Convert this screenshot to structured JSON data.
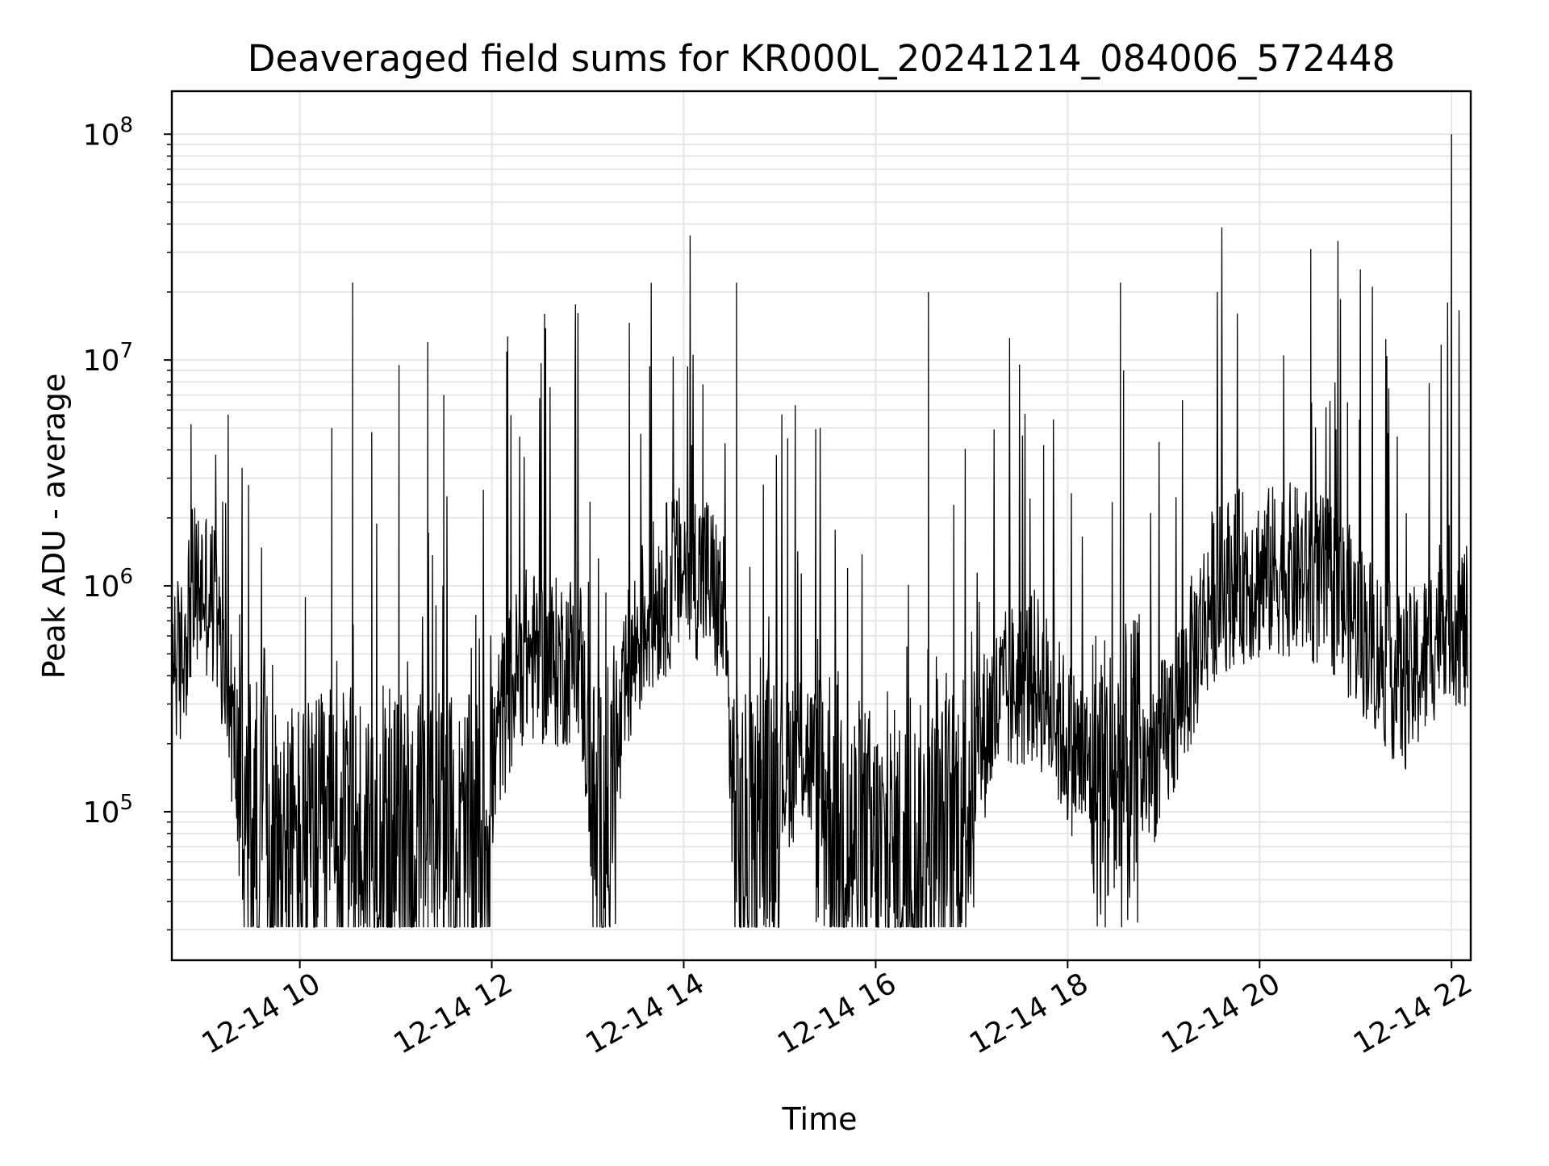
{
  "chart_data": {
    "type": "line",
    "title": "Deaveraged field sums for KR000L_20241214_084006_572448",
    "xlabel": "Time",
    "ylabel": "Peak ADU - average",
    "x_start": "2024-12-14 08:40",
    "x_end": "2024-12-14 22:10",
    "xlim": [
      "2024-12-14 08:40",
      "2024-12-14 22:12"
    ],
    "ylim": [
      22000,
      155000000
    ],
    "y_scale": "log",
    "grid": true,
    "legend": "none",
    "x_ticks": [
      "12-14 10",
      "12-14 12",
      "12-14 14",
      "12-14 16",
      "12-14 18",
      "12-14 20",
      "12-14 22"
    ],
    "y_ticks": [
      {
        "base": "10",
        "exp": "5",
        "value": 100000
      },
      {
        "base": "10",
        "exp": "6",
        "value": 1000000
      },
      {
        "base": "10",
        "exp": "7",
        "value": 10000000
      },
      {
        "base": "10",
        "exp": "8",
        "value": 100000000
      }
    ],
    "series": [
      {
        "line_color": "#000000",
        "points": [
          [
            "2024-12-14 08:40",
            600000
          ],
          [
            "2024-12-14 08:45",
            420000
          ],
          [
            "2024-12-14 08:52",
            900000
          ],
          [
            "2024-12-14 09:00",
            1000000
          ],
          [
            "2024-12-14 09:07",
            800000
          ],
          [
            "2024-12-14 09:12",
            400000
          ],
          [
            "2024-12-14 09:18",
            250000
          ],
          [
            "2024-12-14 09:25",
            90000
          ],
          [
            "2024-12-14 09:35",
            80000
          ],
          [
            "2024-12-14 09:45",
            70000
          ],
          [
            "2024-12-14 10:00",
            65000
          ],
          [
            "2024-12-14 10:20",
            70000
          ],
          [
            "2024-12-14 10:40",
            75000
          ],
          [
            "2024-12-14 11:00",
            70000
          ],
          [
            "2024-12-14 11:20",
            75000
          ],
          [
            "2024-12-14 11:40",
            65000
          ],
          [
            "2024-12-14 11:55",
            70000
          ],
          [
            "2024-12-14 12:05",
            250000
          ],
          [
            "2024-12-14 12:20",
            500000
          ],
          [
            "2024-12-14 12:40",
            450000
          ],
          [
            "2024-12-14 12:55",
            500000
          ],
          [
            "2024-12-14 13:05",
            70000
          ],
          [
            "2024-12-14 13:15",
            100000
          ],
          [
            "2024-12-14 13:25",
            400000
          ],
          [
            "2024-12-14 13:35",
            700000
          ],
          [
            "2024-12-14 13:45",
            900000
          ],
          [
            "2024-12-14 14:00",
            1200000
          ],
          [
            "2024-12-14 14:15",
            1100000
          ],
          [
            "2024-12-14 14:25",
            700000
          ],
          [
            "2024-12-14 14:32",
            80000
          ],
          [
            "2024-12-14 14:45",
            60000
          ],
          [
            "2024-12-14 15:00",
            150000
          ],
          [
            "2024-12-14 15:15",
            200000
          ],
          [
            "2024-12-14 15:30",
            110000
          ],
          [
            "2024-12-14 15:45",
            70000
          ],
          [
            "2024-12-14 16:00",
            60000
          ],
          [
            "2024-12-14 16:20",
            60000
          ],
          [
            "2024-12-14 16:40",
            65000
          ],
          [
            "2024-12-14 16:55",
            100000
          ],
          [
            "2024-12-14 17:10",
            250000
          ],
          [
            "2024-12-14 17:25",
            350000
          ],
          [
            "2024-12-14 17:40",
            400000
          ],
          [
            "2024-12-14 18:00",
            200000
          ],
          [
            "2024-12-14 18:15",
            150000
          ],
          [
            "2024-12-14 18:30",
            130000
          ],
          [
            "2024-12-14 18:45",
            150000
          ],
          [
            "2024-12-14 19:00",
            200000
          ],
          [
            "2024-12-14 19:15",
            400000
          ],
          [
            "2024-12-14 19:30",
            900000
          ],
          [
            "2024-12-14 19:45",
            1100000
          ],
          [
            "2024-12-14 20:00",
            1100000
          ],
          [
            "2024-12-14 20:15",
            1200000
          ],
          [
            "2024-12-14 20:30",
            1100000
          ],
          [
            "2024-12-14 20:45",
            1000000
          ],
          [
            "2024-12-14 21:00",
            700000
          ],
          [
            "2024-12-14 21:15",
            500000
          ],
          [
            "2024-12-14 21:30",
            350000
          ],
          [
            "2024-12-14 21:45",
            500000
          ],
          [
            "2024-12-14 21:55",
            800000
          ],
          [
            "2024-12-14 22:05",
            700000
          ],
          [
            "2024-12-14 22:10",
            600000
          ]
        ],
        "spikes": [
          [
            "2024-12-14 08:52",
            5200000
          ],
          [
            "2024-12-14 10:20",
            5000000
          ],
          [
            "2024-12-14 10:33",
            22000000
          ],
          [
            "2024-12-14 10:45",
            4800000
          ],
          [
            "2024-12-14 11:02",
            9500000
          ],
          [
            "2024-12-14 11:20",
            12000000
          ],
          [
            "2024-12-14 11:30",
            7000000
          ],
          [
            "2024-12-14 12:12",
            5700000
          ],
          [
            "2024-12-14 12:33",
            16000000
          ],
          [
            "2024-12-14 14:05",
            4200000
          ],
          [
            "2024-12-14 14:12",
            7800000
          ],
          [
            "2024-12-14 14:33",
            22000000
          ],
          [
            "2024-12-14 15:05",
            4500000
          ],
          [
            "2024-12-14 16:33",
            20000000
          ],
          [
            "2024-12-14 17:45",
            4200000
          ],
          [
            "2024-12-14 18:33",
            22000000
          ],
          [
            "2024-12-14 18:35",
            9000000
          ],
          [
            "2024-12-14 20:32",
            31000000
          ],
          [
            "2024-12-14 20:55",
            6500000
          ],
          [
            "2024-12-14 22:00",
            100000000
          ]
        ]
      }
    ]
  }
}
